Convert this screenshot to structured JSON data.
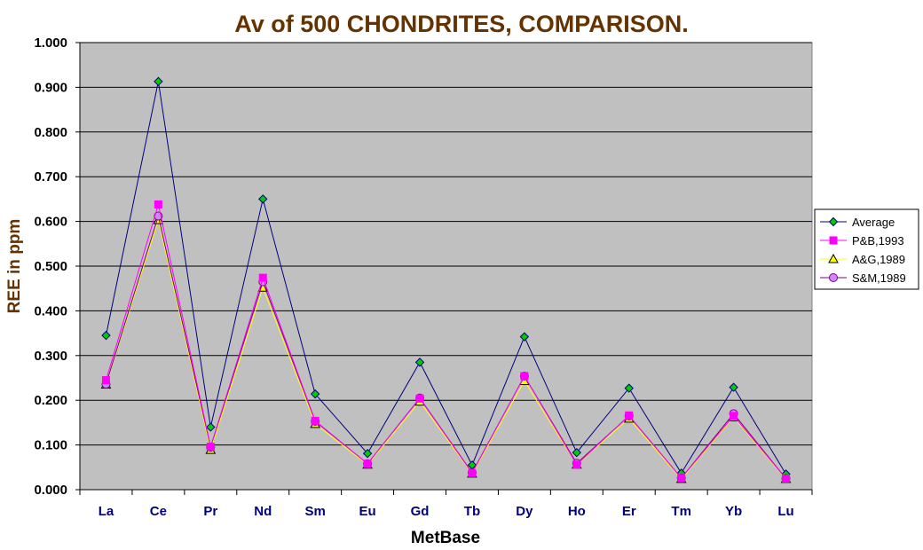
{
  "chart_data": {
    "type": "line",
    "title": "Av of 500 CHONDRITES, COMPARISON.",
    "xlabel": "MetBase",
    "ylabel": "REE in ppm",
    "categories": [
      "La",
      "Ce",
      "Pr",
      "Nd",
      "Sm",
      "Eu",
      "Gd",
      "Tb",
      "Dy",
      "Ho",
      "Er",
      "Tm",
      "Yb",
      "Lu"
    ],
    "ylim": [
      0,
      1
    ],
    "yticks": [
      "0.000",
      "0.100",
      "0.200",
      "0.300",
      "0.400",
      "0.500",
      "0.600",
      "0.700",
      "0.800",
      "0.900",
      "1.000"
    ],
    "grid": true,
    "legend_position": "right",
    "series": [
      {
        "name": "Average",
        "color": "#000080",
        "marker": "diamond",
        "marker_color": "#00cc00",
        "values": [
          0.345,
          0.913,
          0.14,
          0.65,
          0.214,
          0.081,
          0.285,
          0.055,
          0.342,
          0.083,
          0.227,
          0.037,
          0.229,
          0.035
        ]
      },
      {
        "name": "P&B,1993",
        "color": "#ff00ff",
        "marker": "square",
        "marker_color": "#ff00ff",
        "values": [
          0.245,
          0.638,
          0.096,
          0.474,
          0.154,
          0.058,
          0.204,
          0.037,
          0.254,
          0.056,
          0.166,
          0.026,
          0.165,
          0.025
        ]
      },
      {
        "name": "A&G,1989",
        "color": "#ffff00",
        "marker": "triangle",
        "marker_color": "#ffff00",
        "values": [
          0.235,
          0.603,
          0.089,
          0.452,
          0.147,
          0.056,
          0.197,
          0.036,
          0.243,
          0.056,
          0.159,
          0.024,
          0.162,
          0.024
        ]
      },
      {
        "name": "S&M,1989",
        "color": "#800080",
        "marker": "circle",
        "marker_color": "#cc88ff",
        "values": [
          0.236,
          0.612,
          0.095,
          0.465,
          0.153,
          0.058,
          0.205,
          0.038,
          0.254,
          0.059,
          0.165,
          0.026,
          0.17,
          0.025
        ]
      }
    ]
  },
  "colors": {
    "plot_background": "#c0c0c0",
    "title_color": "#663300",
    "tick_label_color": "#000080",
    "axis_label_color": "#000000"
  }
}
